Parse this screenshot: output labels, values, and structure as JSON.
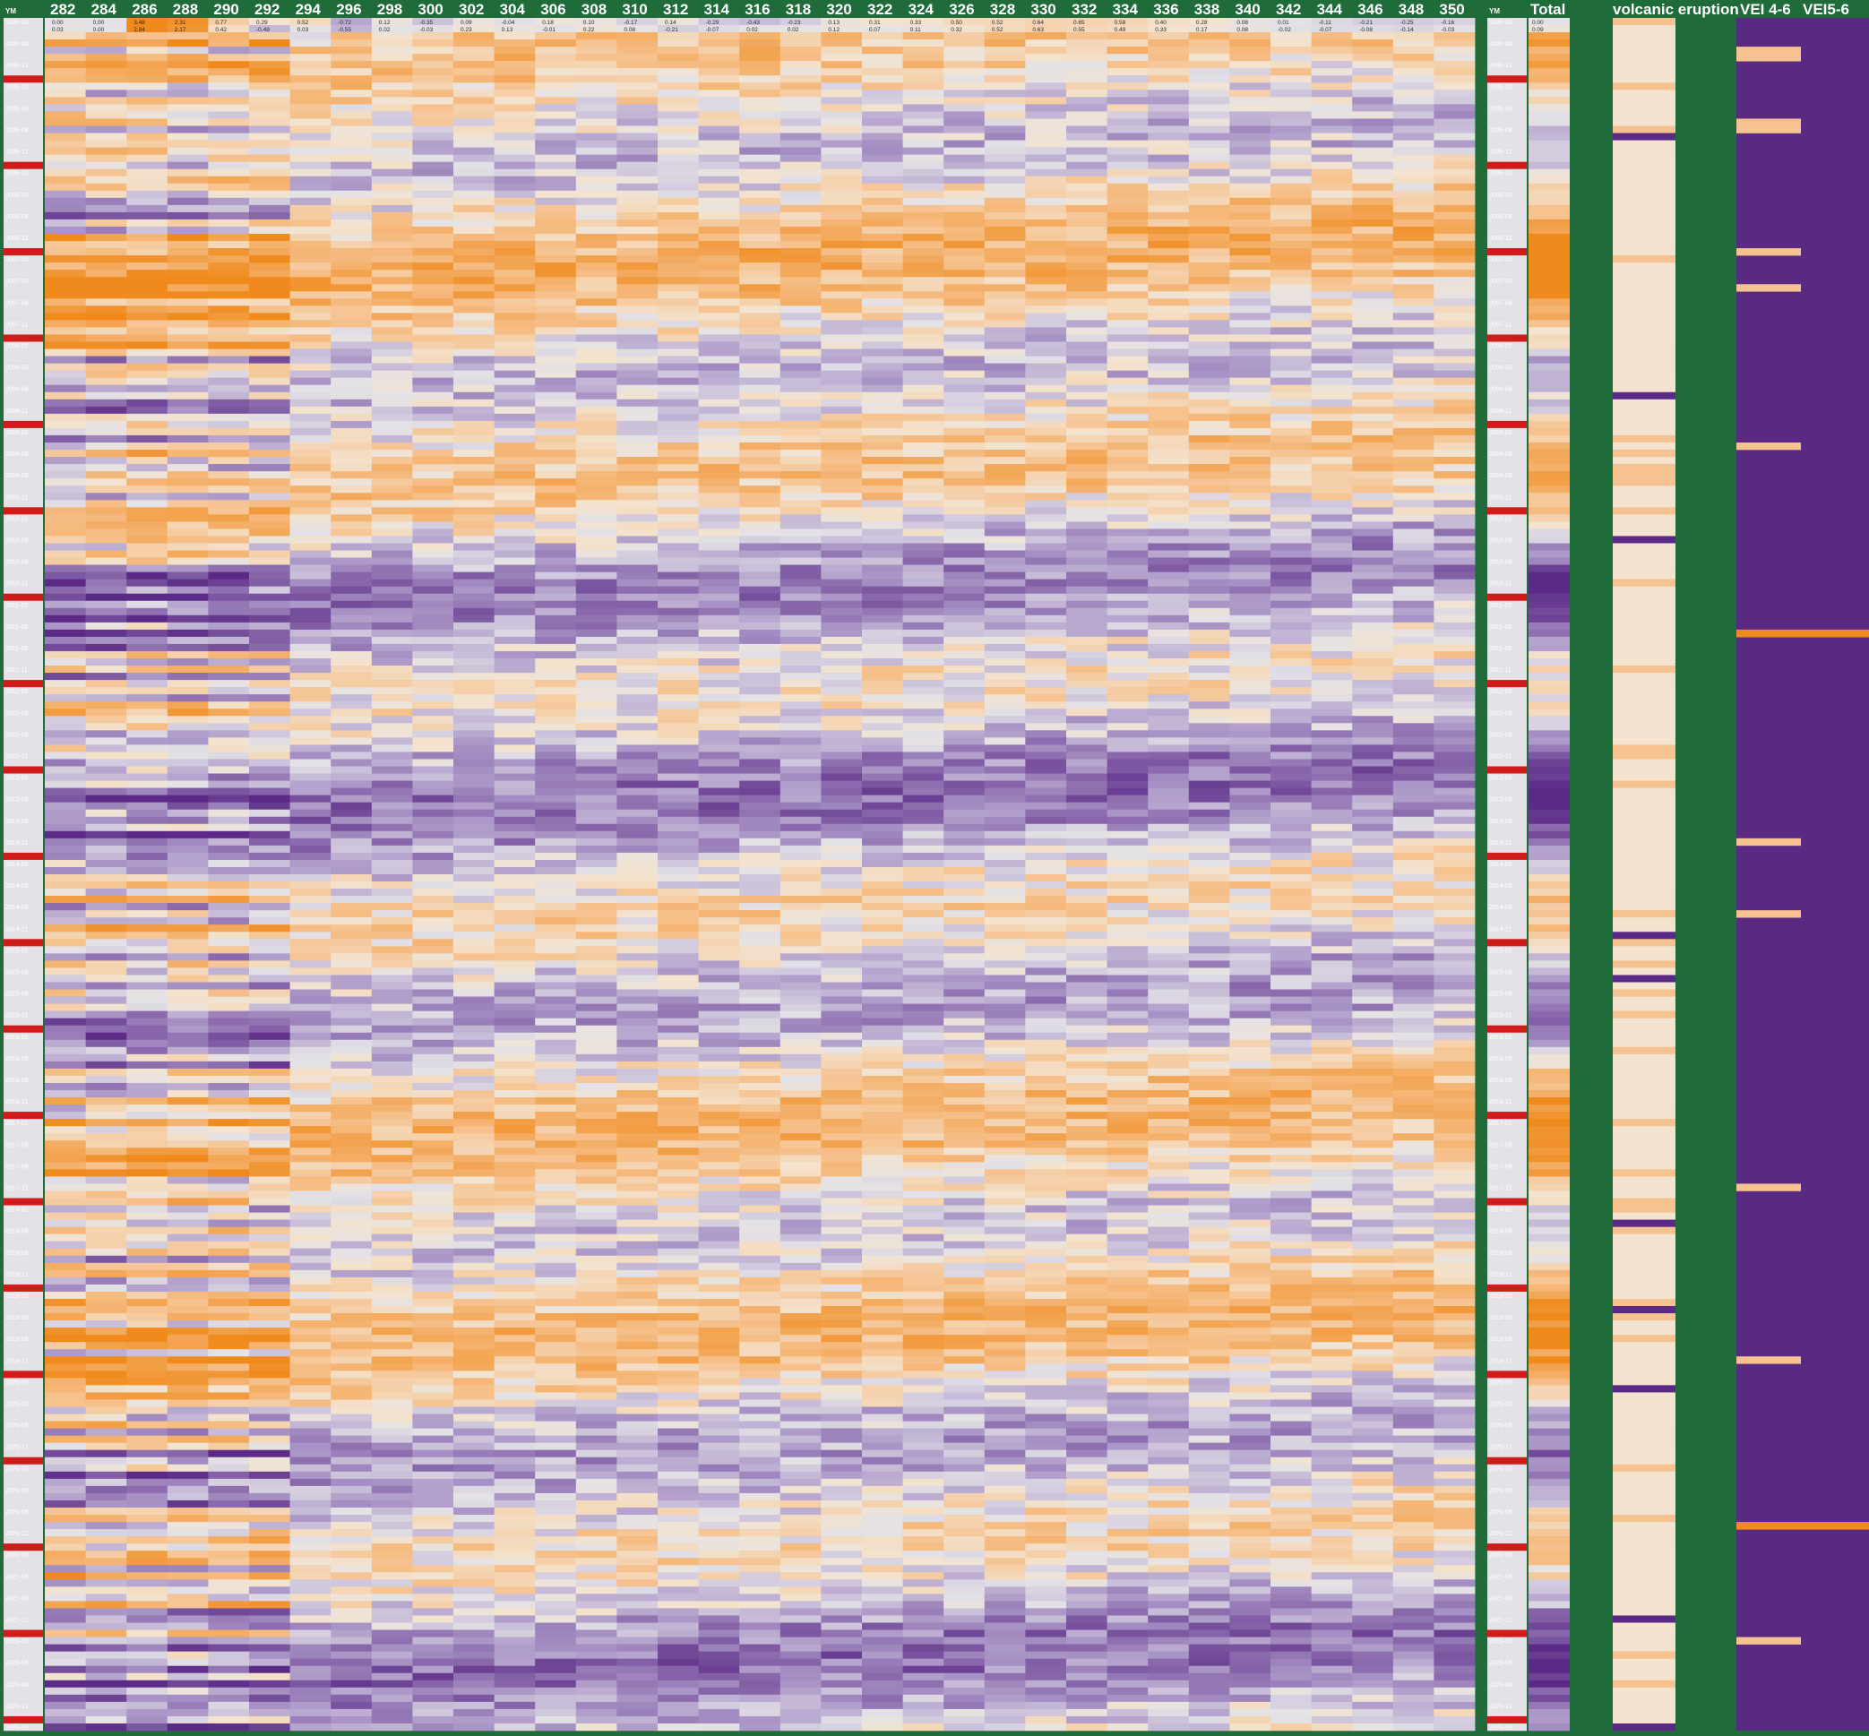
{
  "sheet": {
    "ym_label": "YM",
    "ym_label_right": "YM",
    "total_label": "Total",
    "volcanic_label": "volcanic eruption",
    "vei46_label": "VEI 4-6",
    "vei56_label": "VEI5-6"
  },
  "colors": {
    "background": "#1f6b3a",
    "strong_positive": "#f08a1c",
    "mid_positive": "#f6c28f",
    "weak_positive": "#f3e3cf",
    "neutral": "#e4e2e6",
    "weak_negative": "#cfc6dc",
    "mid_negative": "#a994c6",
    "strong_negative": "#5b2a86",
    "year_marker": "#d01b1b",
    "vei_column": "#5a2a82"
  },
  "chart_data": {
    "type": "heatmap",
    "title": "",
    "xlabel": "",
    "ylabel": "",
    "x_categories": [
      "282",
      "284",
      "286",
      "288",
      "290",
      "292",
      "294",
      "296",
      "298",
      "300",
      "302",
      "304",
      "306",
      "308",
      "310",
      "312",
      "314",
      "316",
      "318",
      "320",
      "322",
      "324",
      "326",
      "328",
      "330",
      "332",
      "334",
      "336",
      "338",
      "340",
      "342",
      "344",
      "346",
      "348",
      "350"
    ],
    "y_range": [
      "2004-05",
      "2024-02"
    ],
    "value_range": [
      -5,
      5
    ],
    "colorscale": "purple (negative) - grey (zero) - orange (positive)",
    "extra_columns": [
      "Total",
      "volcanic eruption",
      "VEI 4-6",
      "VEI5-6"
    ],
    "row_labels_sample": [
      "2004-05",
      "2004-06",
      "2004-07",
      "2004-08",
      "2004-09",
      "2004-10",
      "2004-11",
      "2004-12",
      "2005-01",
      "2005-02",
      "2005-03",
      "2005-04",
      "2005-05",
      "2005-06",
      "2005-07",
      "2005-08",
      "2005-09",
      "2005-10"
    ],
    "first_rows_sample": [
      {
        "ym": "2004-05",
        "values": [
          0.0,
          0.0,
          3.48,
          2.31,
          0.77,
          0.29,
          0.52,
          -0.72,
          0.12,
          -0.35,
          0.09,
          -0.04,
          0.18,
          0.1,
          -0.17,
          0.14,
          -0.29,
          -0.43,
          -0.23,
          0.13,
          0.31,
          0.33,
          0.5,
          0.52,
          0.64,
          0.65,
          0.58,
          0.4,
          0.28,
          0.08,
          0.01,
          -0.11,
          -0.21,
          -0.25,
          -0.16
        ],
        "total": 0.0
      },
      {
        "ym": "2004-06",
        "values": [
          0.03,
          0.0,
          2.84,
          2.17,
          0.42,
          -0.49,
          0.03,
          -0.55,
          0.02,
          -0.03,
          0.23,
          0.13,
          -0.01,
          0.22,
          0.08,
          -0.21,
          -0.07,
          0.02,
          0.02,
          0.12,
          0.07,
          0.11,
          0.32,
          0.52,
          0.63,
          0.55,
          0.49,
          0.33,
          0.17,
          0.08,
          -0.02,
          -0.07,
          -0.08,
          -0.14,
          -0.03
        ],
        "total": 0.09
      }
    ]
  }
}
